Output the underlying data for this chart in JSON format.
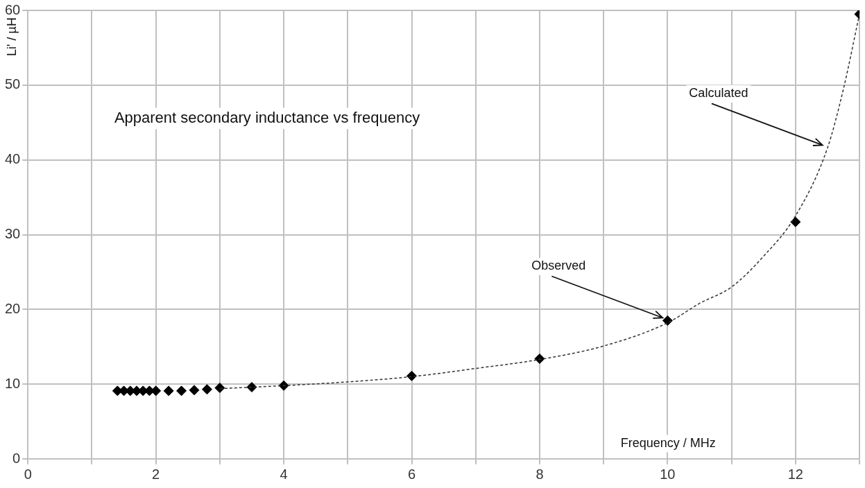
{
  "chart_data": {
    "type": "scatter",
    "title": "Apparent secondary inductance vs frequency",
    "xlabel": "Frequency / MHz",
    "ylabel": "Li' / µH",
    "xlim": [
      0,
      13
    ],
    "ylim": [
      0,
      60
    ],
    "xticks": [
      0,
      {
        "value": 1,
        "label": null
      },
      2,
      {
        "value": 3,
        "label": null
      },
      4,
      {
        "value": 5,
        "label": null
      },
      6,
      {
        "value": 7,
        "label": null
      },
      8,
      {
        "value": 9,
        "label": null
      },
      10,
      {
        "value": 11,
        "label": null
      },
      12,
      {
        "value": 13,
        "label": null
      }
    ],
    "yticks": [
      0,
      10,
      20,
      30,
      40,
      50,
      60
    ],
    "grid": true,
    "legend": false,
    "series": [
      {
        "type": "line",
        "color": "#333333",
        "marker": "none",
        "line_style": "dashed",
        "x": [
          3,
          4,
          5,
          6,
          7,
          8,
          9,
          10,
          10.5,
          11,
          11.5,
          12,
          12.5,
          12.75,
          13
        ],
        "values": [
          9.4,
          9.8,
          10.3,
          11.0,
          12.1,
          13.3,
          15.1,
          18.2,
          20.8,
          23.0,
          27.1,
          32.5,
          41.6,
          49.5,
          59.5
        ]
      },
      {
        "color": "#000000",
        "marker": "diamond",
        "x": [
          1.4,
          1.5,
          1.6,
          1.7,
          1.8,
          1.9,
          2.0,
          2.2,
          2.4,
          2.6,
          2.8,
          3.0,
          3.5,
          4,
          6,
          8,
          10,
          12,
          13
        ],
        "values": [
          9.1,
          9.1,
          9.1,
          9.1,
          9.1,
          9.1,
          9.1,
          9.1,
          9.1,
          9.2,
          9.3,
          9.5,
          9.6,
          9.8,
          11.1,
          13.4,
          18.5,
          31.7,
          59.5
        ]
      }
    ],
    "annotations": [
      {
        "text": "Observed",
        "x": 10,
        "y": 18.5
      },
      {
        "text": "Calculated",
        "x": 12.5,
        "y": 41.6
      }
    ]
  }
}
